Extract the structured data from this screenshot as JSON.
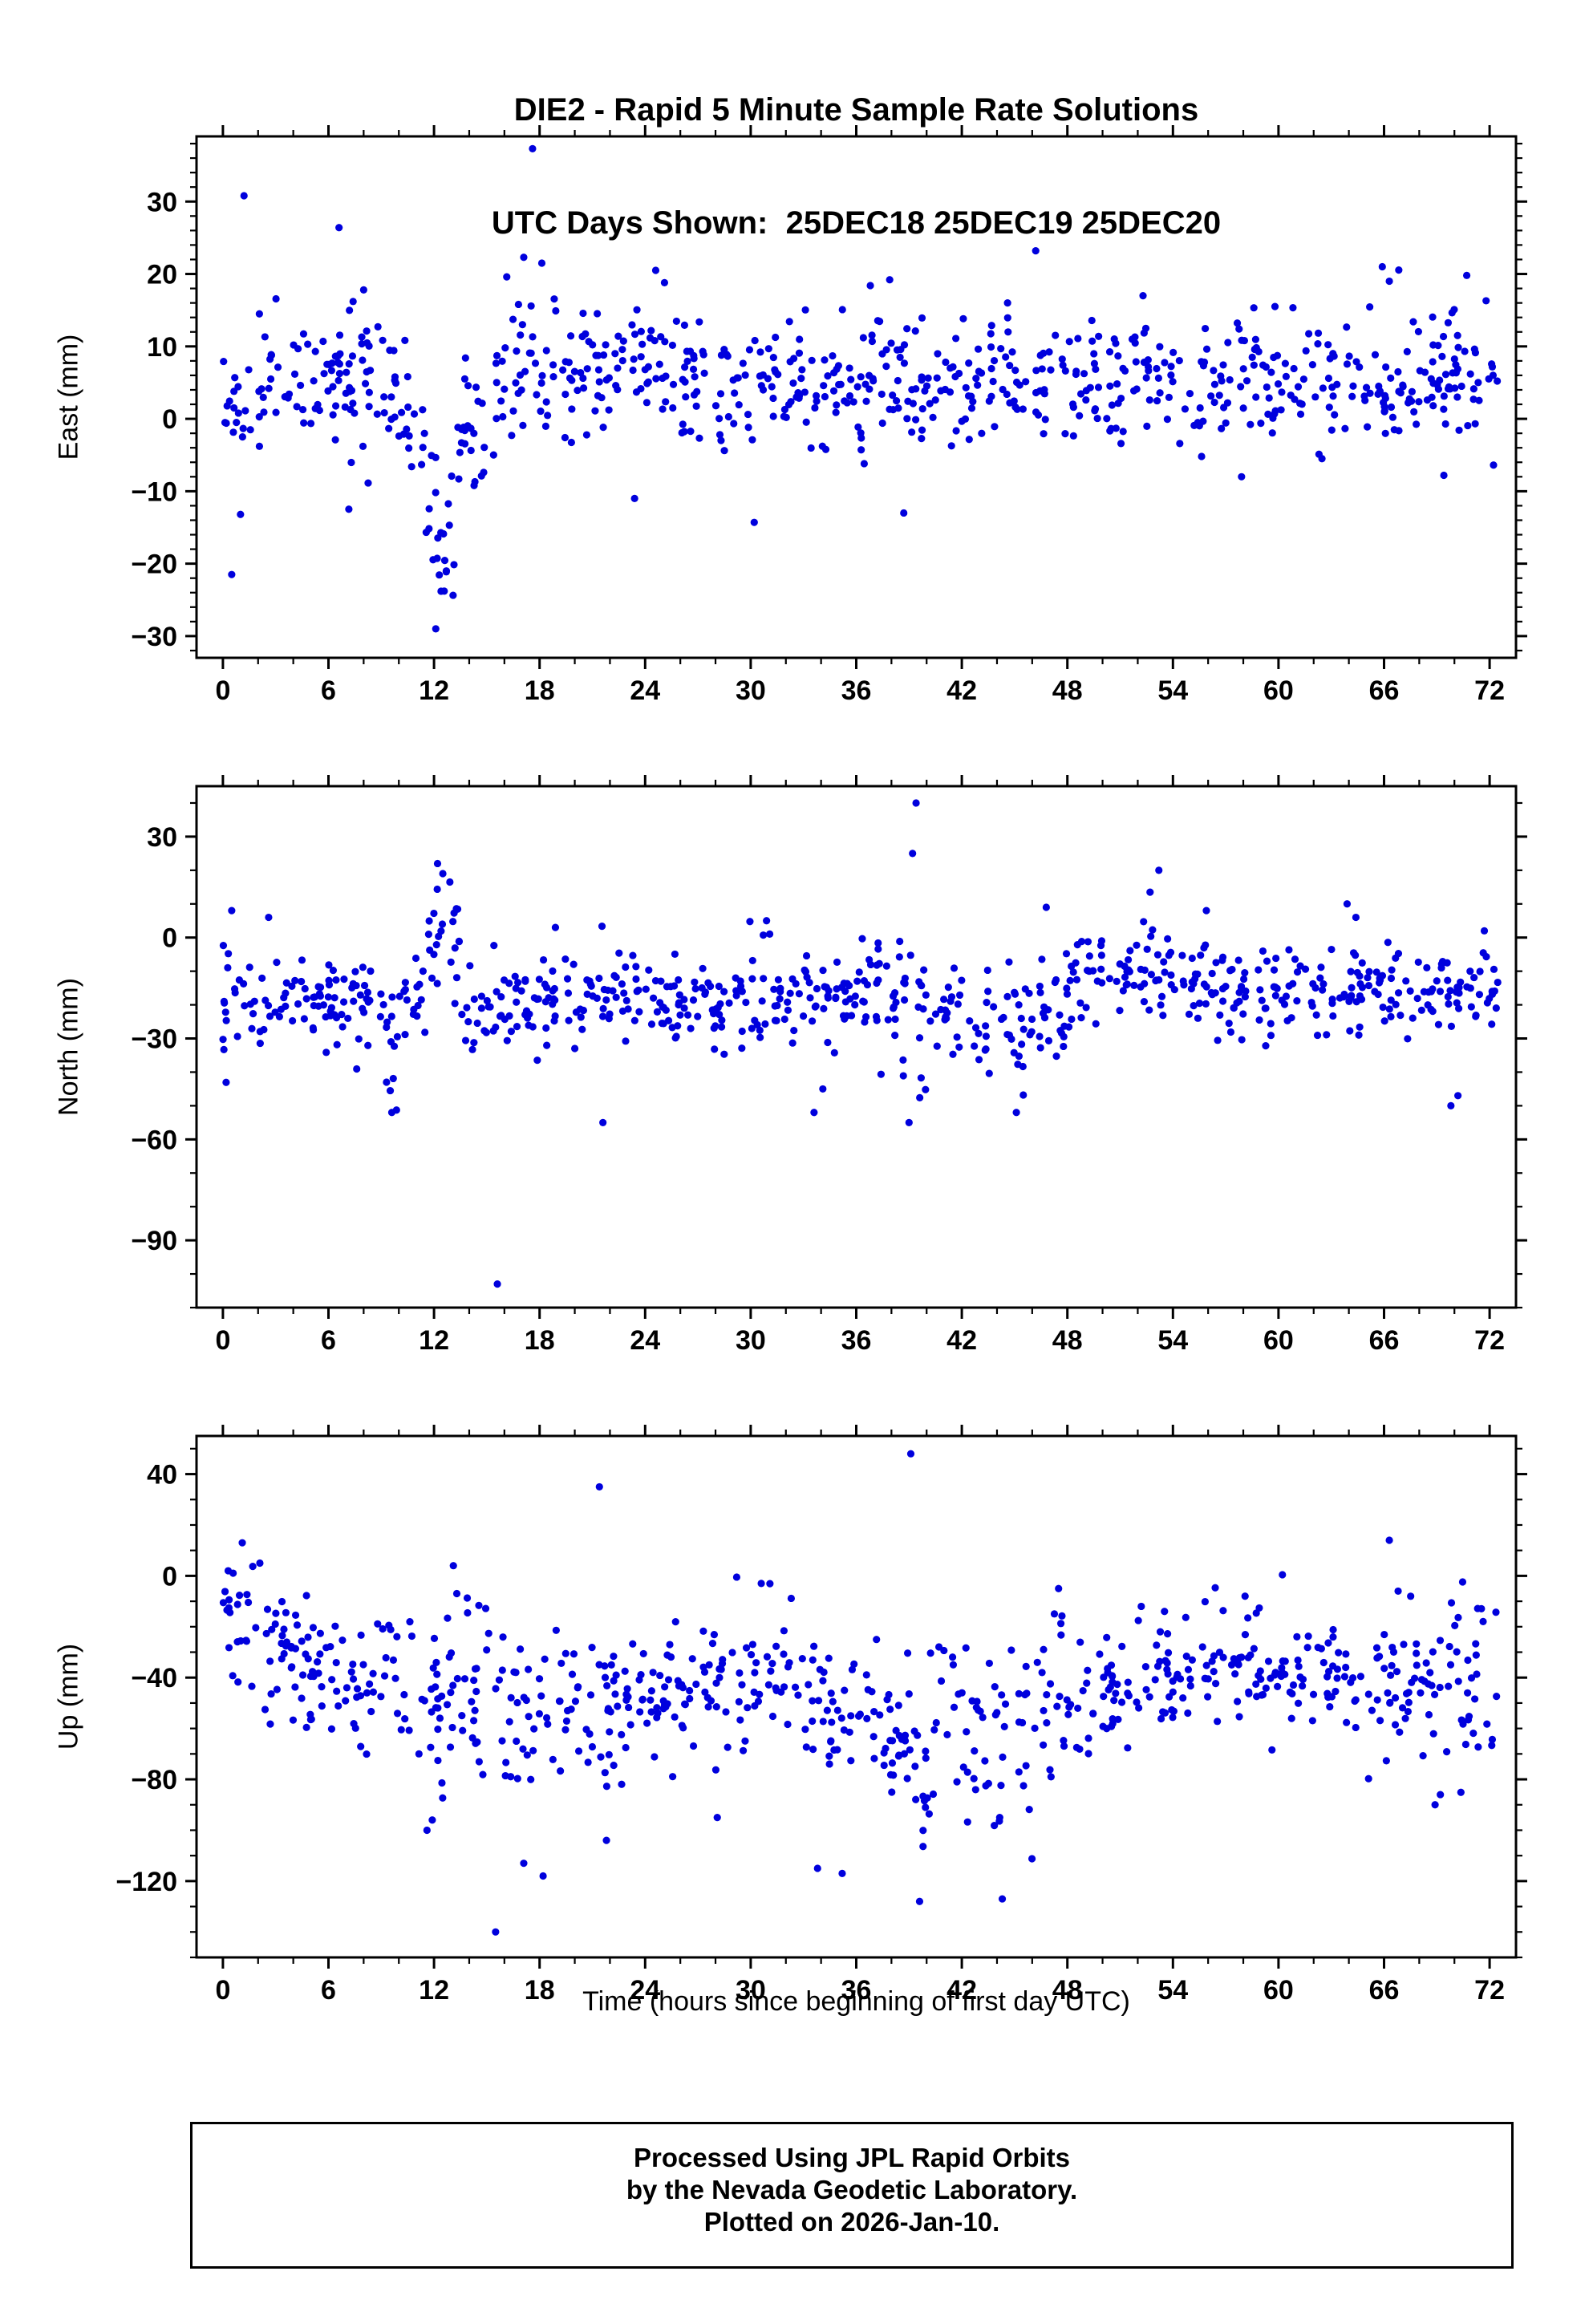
{
  "page": {
    "title_line1": "DIE2 - Rapid 5 Minute Sample Rate Solutions",
    "title_line2": "UTC Days Shown:  25DEC18 25DEC19 25DEC20",
    "xlabel": "Time (hours since beginning of first day UTC)",
    "footer_line1": "Processed Using JPL Rapid Orbits",
    "footer_line2": "by the Nevada Geodetic Laboratory.",
    "footer_line3": "Plotted on 2026-Jan-10."
  },
  "style": {
    "marker_color": "#0000dd",
    "axis_color": "#000000",
    "background_color": "#ffffff"
  },
  "chart_data": [
    {
      "type": "scatter",
      "panel": "east",
      "ylabel": "East (mm)",
      "xlabel": "",
      "xlim": [
        -1.5,
        73.5
      ],
      "ylim": [
        -33,
        39
      ],
      "xticks": [
        0,
        6,
        12,
        18,
        24,
        30,
        36,
        42,
        48,
        54,
        60,
        66,
        72
      ],
      "yticks": [
        -30,
        -20,
        -10,
        0,
        10,
        20,
        30
      ],
      "x_minor_step": 2,
      "y_minor_step": 2,
      "grid": false,
      "legend": false,
      "seed": 11,
      "segments_schema": [
        "x_start_hours",
        "x_end_hours",
        "mean_mm",
        "std_mm",
        "count"
      ],
      "segments": [
        [
          0,
          1.5,
          3,
          4,
          16
        ],
        [
          1.5,
          10.5,
          4.5,
          4.5,
          100
        ],
        [
          10.5,
          11.5,
          -4,
          4,
          10
        ],
        [
          11.5,
          13.2,
          -16,
          5,
          20
        ],
        [
          13.2,
          15.5,
          -3,
          5,
          24
        ],
        [
          15.5,
          19,
          7,
          5,
          40
        ],
        [
          19,
          24,
          7,
          4.5,
          55
        ],
        [
          24,
          72.5,
          5,
          4.5,
          520
        ]
      ],
      "points_schema": [
        "hours",
        "mm"
      ],
      "outlier_points": [
        [
          1.2,
          30.8
        ],
        [
          0.5,
          -21.5
        ],
        [
          1.0,
          -13.2
        ],
        [
          6.6,
          26.4
        ],
        [
          12.1,
          -29
        ],
        [
          17.6,
          37.3
        ],
        [
          17.1,
          22.3
        ],
        [
          24.6,
          20.5
        ],
        [
          25.1,
          18.8
        ],
        [
          46.2,
          23.2
        ],
        [
          37.9,
          19.2
        ],
        [
          36.8,
          18.4
        ],
        [
          30.2,
          -14.3
        ],
        [
          38.7,
          -13
        ],
        [
          57.9,
          -8
        ],
        [
          69.4,
          -7.8
        ],
        [
          23.4,
          -11
        ],
        [
          12.4,
          -23.8
        ],
        [
          12.7,
          -21
        ],
        [
          16.8,
          15.8
        ],
        [
          70.7,
          19.8
        ],
        [
          71.8,
          16.3
        ],
        [
          8.0,
          17.8
        ],
        [
          7.4,
          16.2
        ],
        [
          44.6,
          16
        ],
        [
          52.3,
          17
        ],
        [
          59.8,
          15.5
        ],
        [
          65.9,
          21
        ],
        [
          66.3,
          19
        ]
      ]
    },
    {
      "type": "scatter",
      "panel": "north",
      "ylabel": "North (mm)",
      "xlabel": "",
      "xlim": [
        -1.5,
        73.5
      ],
      "ylim": [
        -110,
        45
      ],
      "xticks": [
        0,
        6,
        12,
        18,
        24,
        30,
        36,
        42,
        48,
        54,
        60,
        66,
        72
      ],
      "yticks": [
        -90,
        -60,
        -30,
        0,
        30
      ],
      "x_minor_step": 2,
      "y_minor_step": 10,
      "grid": false,
      "legend": false,
      "seed": 22,
      "segments_schema": [
        "x_start_hours",
        "x_end_hours",
        "mean_mm",
        "std_mm",
        "count"
      ],
      "segments": [
        [
          0,
          1.5,
          -15,
          9,
          16
        ],
        [
          1.5,
          9,
          -19,
          6,
          80
        ],
        [
          9,
          10,
          -30,
          10,
          11
        ],
        [
          10,
          11.5,
          -18,
          6,
          16
        ],
        [
          11.5,
          13.5,
          -4,
          8,
          22
        ],
        [
          13.5,
          18,
          -21,
          7,
          48
        ],
        [
          18,
          36,
          -18,
          6.5,
          195
        ],
        [
          36,
          41,
          -19,
          11,
          54
        ],
        [
          41,
          48,
          -22,
          7.5,
          75
        ],
        [
          48,
          56,
          -12,
          7,
          86
        ],
        [
          56,
          72.5,
          -16,
          6.5,
          175
        ]
      ],
      "points_schema": [
        "hours",
        "mm"
      ],
      "outlier_points": [
        [
          15.6,
          -103
        ],
        [
          39.4,
          40
        ],
        [
          39.2,
          25
        ],
        [
          12.2,
          22
        ],
        [
          12.5,
          19
        ],
        [
          12.9,
          16.5
        ],
        [
          53.2,
          20
        ],
        [
          52.7,
          13.5
        ],
        [
          21.6,
          -55
        ],
        [
          33.6,
          -52
        ],
        [
          34.1,
          -45
        ],
        [
          45.1,
          -52
        ],
        [
          39.0,
          -55
        ],
        [
          69.8,
          -50
        ],
        [
          70.2,
          -47
        ],
        [
          9.6,
          -52
        ],
        [
          9.3,
          -43
        ],
        [
          0.5,
          8
        ],
        [
          2.6,
          6
        ],
        [
          63.9,
          10
        ],
        [
          64.4,
          6
        ],
        [
          71.7,
          2
        ],
        [
          55.9,
          8
        ],
        [
          46.8,
          9
        ],
        [
          30.9,
          5
        ],
        [
          18.9,
          3
        ]
      ]
    },
    {
      "type": "scatter",
      "panel": "up",
      "ylabel": "Up (mm)",
      "xlabel": "Time (hours since beginning of first day UTC)",
      "xlim": [
        -1.5,
        73.5
      ],
      "ylim": [
        -150,
        55
      ],
      "xticks": [
        0,
        6,
        12,
        18,
        24,
        30,
        36,
        42,
        48,
        54,
        60,
        66,
        72
      ],
      "yticks": [
        -120,
        -80,
        -40,
        0,
        40
      ],
      "x_minor_step": 2,
      "y_minor_step": 10,
      "grid": false,
      "legend": false,
      "seed": 33,
      "segments_schema": [
        "x_start_hours",
        "x_end_hours",
        "mean_mm",
        "std_mm",
        "count"
      ],
      "segments": [
        [
          0,
          1.5,
          -18,
          14,
          18
        ],
        [
          1.5,
          4,
          -28,
          13,
          28
        ],
        [
          4,
          10,
          -40,
          14,
          64
        ],
        [
          10,
          16,
          -50,
          19,
          62
        ],
        [
          16,
          24,
          -55,
          16,
          85
        ],
        [
          24,
          33,
          -45,
          14,
          95
        ],
        [
          33,
          38,
          -55,
          15,
          52
        ],
        [
          38,
          46,
          -62,
          19,
          85
        ],
        [
          46,
          52,
          -47,
          14,
          62
        ],
        [
          52,
          64,
          -38,
          12,
          128
        ],
        [
          64,
          72.5,
          -42,
          14,
          88
        ]
      ],
      "points_schema": [
        "hours",
        "mm"
      ],
      "outlier_points": [
        [
          39.1,
          48
        ],
        [
          21.4,
          35
        ],
        [
          15.5,
          -140
        ],
        [
          39.6,
          -128
        ],
        [
          44.3,
          -127
        ],
        [
          33.8,
          -115
        ],
        [
          18.2,
          -118
        ],
        [
          11.6,
          -100
        ],
        [
          11.9,
          -96
        ],
        [
          66.3,
          14
        ],
        [
          1.1,
          13
        ],
        [
          0.3,
          2
        ],
        [
          13.1,
          4
        ],
        [
          17.1,
          -113
        ],
        [
          21.8,
          -104
        ],
        [
          28.1,
          -95
        ],
        [
          52.2,
          -12
        ],
        [
          58.1,
          -8
        ],
        [
          66.8,
          -6
        ],
        [
          68.9,
          -90
        ],
        [
          69.2,
          -86
        ],
        [
          2.1,
          5
        ],
        [
          47.5,
          -5
        ],
        [
          30.6,
          -3
        ],
        [
          35.2,
          -117
        ]
      ]
    }
  ]
}
